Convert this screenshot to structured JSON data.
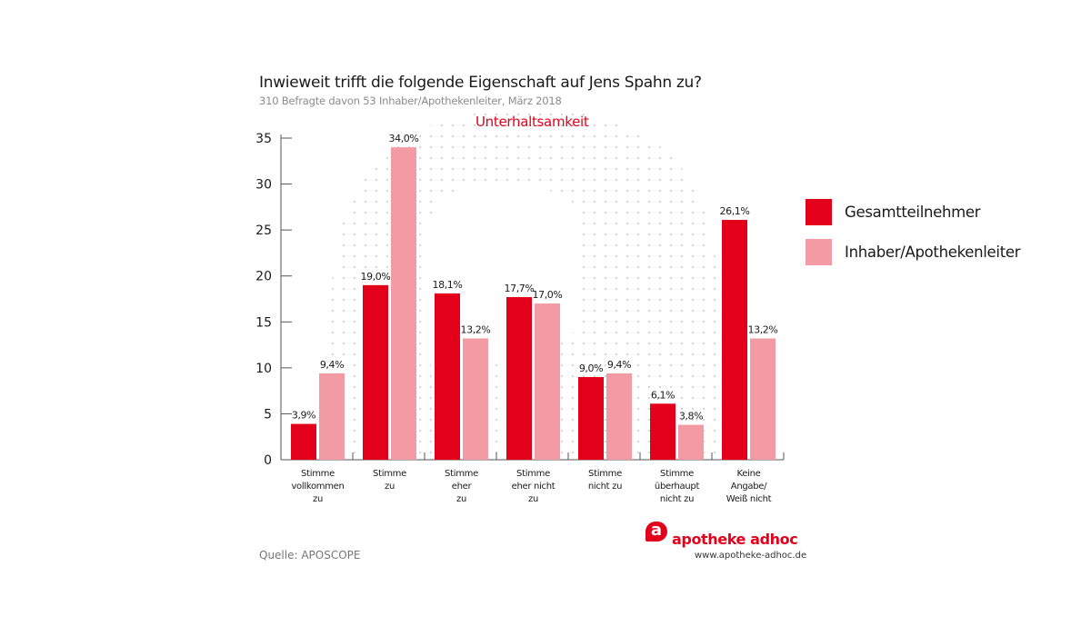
{
  "header": {
    "title": "Inwieweit trifft die folgende Eigenschaft auf Jens Spahn zu?",
    "subtitle": "310 Befragte davon 53 Inhaber/Apothekenleiter, März 2018",
    "highlight": "Unterhaltsamkeit"
  },
  "chart_data": {
    "type": "bar",
    "title": "Inwieweit trifft die folgende Eigenschaft auf Jens Spahn zu?",
    "subtitle": "Unterhaltsamkeit",
    "xlabel": "",
    "ylabel": "",
    "ylim": [
      0,
      35
    ],
    "yticks": [
      0,
      5,
      10,
      15,
      20,
      25,
      30,
      35
    ],
    "grid": false,
    "legend_position": "right",
    "categories": [
      [
        "Stimme",
        "vollkommen",
        "zu"
      ],
      [
        "Stimme",
        "zu"
      ],
      [
        "Stimme",
        "eher",
        "zu"
      ],
      [
        "Stimme",
        "eher nicht",
        "zu"
      ],
      [
        "Stimme",
        "nicht zu"
      ],
      [
        "Stimme",
        "überhaupt",
        "nicht zu"
      ],
      [
        "Keine",
        "Angabe/",
        "Weiß nicht"
      ]
    ],
    "series": [
      {
        "name": "Gesamtteilnehmer",
        "color": "#e2001a",
        "values": [
          3.9,
          19.0,
          18.1,
          17.7,
          9.0,
          6.1,
          26.1
        ],
        "labels": [
          "3,9%",
          "19,0%",
          "18,1%",
          "17,7%",
          "9,0%",
          "6,1%",
          "26,1%"
        ]
      },
      {
        "name": "Inhaber/Apothekenleiter",
        "color": "#f29ba4",
        "values": [
          9.4,
          34.0,
          13.2,
          17.0,
          9.4,
          3.8,
          13.2
        ],
        "labels": [
          "9,4%",
          "34,0%",
          "13,2%",
          "17,0%",
          "9,4%",
          "3,8%",
          "13,2%"
        ]
      }
    ]
  },
  "legend": [
    {
      "label": "Gesamtteilnehmer",
      "color": "#e2001a"
    },
    {
      "label": "Inhaber/Apothekenleiter",
      "color": "#f29ba4"
    }
  ],
  "footer": {
    "source": "Quelle: APOSCOPE",
    "logo_mark": "a",
    "logo_name": "apotheke adhoc",
    "logo_url": "www.apotheke-adhoc.de"
  }
}
